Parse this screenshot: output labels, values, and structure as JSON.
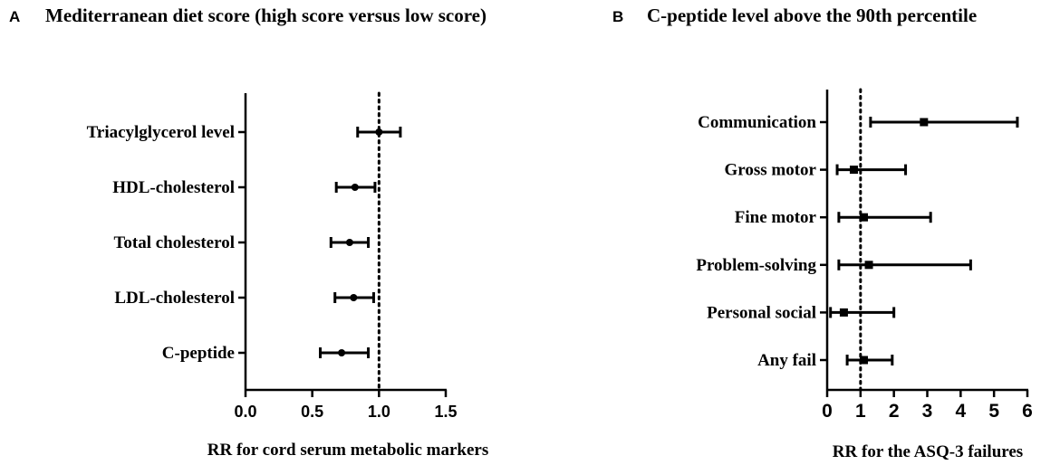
{
  "chart_data": [
    {
      "type": "forest",
      "panel_label": "A",
      "title": "Mediterranean diet score (high score versus low score)",
      "xlabel": "RR  for  cord serum metabolic markers",
      "xlim": [
        0,
        1.5
      ],
      "xticks": [
        "0.0",
        "0.5",
        "1.0",
        "1.5"
      ],
      "reference_line": 1.0,
      "marker": "circle",
      "categories": [
        "Triacylglycerol level",
        "HDL-cholesterol",
        "Total cholesterol",
        "LDL-cholesterol",
        "C-peptide"
      ],
      "estimate": [
        1.0,
        0.82,
        0.78,
        0.81,
        0.72
      ],
      "lower": [
        0.84,
        0.68,
        0.64,
        0.67,
        0.56
      ],
      "upper": [
        1.16,
        0.97,
        0.92,
        0.96,
        0.92
      ]
    },
    {
      "type": "forest",
      "panel_label": "B",
      "title": "C-peptide level above the 90th percentile",
      "xlabel": "RR for the  ASQ-3 failures",
      "xlim": [
        0,
        6
      ],
      "xticks": [
        "0",
        "1",
        "2",
        "3",
        "4",
        "5",
        "6"
      ],
      "reference_line": 1.0,
      "marker": "square",
      "categories": [
        "Communication",
        "Gross motor",
        "Fine motor",
        "Problem-solving",
        "Personal social",
        "Any fail"
      ],
      "estimate": [
        2.9,
        0.8,
        1.1,
        1.25,
        0.5,
        1.1
      ],
      "lower": [
        1.3,
        0.3,
        0.35,
        0.35,
        0.1,
        0.6
      ],
      "upper": [
        5.7,
        2.35,
        3.1,
        4.3,
        2.0,
        1.95
      ]
    }
  ]
}
